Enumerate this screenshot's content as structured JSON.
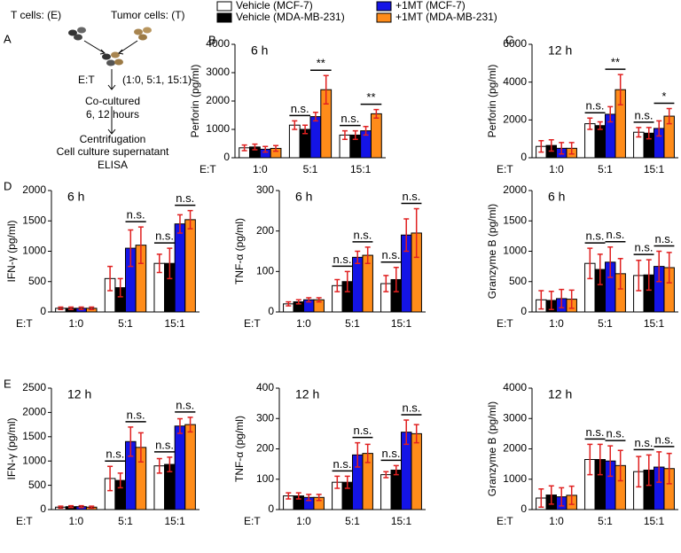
{
  "diagram": {
    "panel": "A",
    "effector": "T cells: (E)",
    "target": "Tumor cells: (T)",
    "ratio_label": "E:T",
    "ratios": "(1:0, 5:1, 15:1)",
    "steps": [
      "Co-cultured",
      "6, 12 hours",
      "Centrifugation",
      "Cell culture supernatant",
      "ELISA"
    ]
  },
  "chart_data": [
    {
      "type": "bar",
      "panel": "B",
      "title": "6 h",
      "ylabel": "Perforin (pg/ml)",
      "xlabel": "E:T",
      "categories": [
        "1:0",
        "5:1",
        "15:1"
      ],
      "series": [
        {
          "name": "Vehicle (MCF-7)",
          "color": "#ffffff",
          "values": [
            350,
            1150,
            800
          ],
          "errors": [
            100,
            150,
            150
          ]
        },
        {
          "name": "Vehicle (MDA-MB-231)",
          "color": "#000000",
          "values": [
            380,
            1000,
            800
          ],
          "errors": [
            100,
            150,
            150
          ]
        },
        {
          "name": "+1MT (MCF-7)",
          "color": "#1414e6",
          "values": [
            300,
            1450,
            950
          ],
          "errors": [
            100,
            150,
            150
          ]
        },
        {
          "name": "+1MT (MDA-MB-231)",
          "color": "#ff8c1a",
          "values": [
            330,
            2400,
            1550
          ],
          "errors": [
            100,
            500,
            150
          ]
        }
      ],
      "ylim": [
        0,
        4000
      ],
      "yticks": [
        0,
        1000,
        2000,
        3000,
        4000
      ],
      "annotations": [
        {
          "text": "n.s.",
          "category": "5:1",
          "series": [
            0,
            1
          ]
        },
        {
          "text": "**",
          "category": "5:1",
          "series": [
            2,
            3
          ]
        },
        {
          "text": "n.s.",
          "category": "15:1",
          "series": [
            0,
            1
          ]
        },
        {
          "text": "**",
          "category": "15:1",
          "series": [
            2,
            3
          ]
        }
      ]
    },
    {
      "type": "bar",
      "panel": "C",
      "title": "12 h",
      "ylabel": "Perforin (pg/ml)",
      "xlabel": "E:T",
      "categories": [
        "1:0",
        "5:1",
        "15:1"
      ],
      "series": [
        {
          "color": "#ffffff",
          "values": [
            600,
            1800,
            1350
          ],
          "errors": [
            300,
            300,
            250
          ]
        },
        {
          "color": "#000000",
          "values": [
            650,
            1700,
            1300
          ],
          "errors": [
            300,
            200,
            300
          ]
        },
        {
          "color": "#1414e6",
          "values": [
            500,
            2300,
            1550
          ],
          "errors": [
            300,
            400,
            400
          ]
        },
        {
          "color": "#ff8c1a",
          "values": [
            500,
            3600,
            2200
          ],
          "errors": [
            300,
            800,
            400
          ]
        }
      ],
      "ylim": [
        0,
        6000
      ],
      "yticks": [
        0,
        2000,
        4000,
        6000
      ],
      "annotations": [
        {
          "text": "n.s.",
          "category": "5:1",
          "series": [
            0,
            1
          ]
        },
        {
          "text": "**",
          "category": "5:1",
          "series": [
            2,
            3
          ]
        },
        {
          "text": "n.s.",
          "category": "15:1",
          "series": [
            0,
            1
          ]
        },
        {
          "text": "*",
          "category": "15:1",
          "series": [
            2,
            3
          ]
        }
      ]
    },
    {
      "type": "bar",
      "panel": "D",
      "title": "6 h",
      "ylabel": "IFN-γ (pg/ml)",
      "xlabel": "E:T",
      "categories": [
        "1:0",
        "5:1",
        "15:1"
      ],
      "series": [
        {
          "color": "#ffffff",
          "values": [
            60,
            550,
            800
          ],
          "errors": [
            20,
            200,
            150
          ]
        },
        {
          "color": "#000000",
          "values": [
            60,
            400,
            800
          ],
          "errors": [
            20,
            150,
            250
          ]
        },
        {
          "color": "#1414e6",
          "values": [
            60,
            1050,
            1450
          ],
          "errors": [
            20,
            300,
            150
          ]
        },
        {
          "color": "#ff8c1a",
          "values": [
            60,
            1100,
            1520
          ],
          "errors": [
            20,
            300,
            150
          ]
        }
      ],
      "ylim": [
        0,
        2000
      ],
      "yticks": [
        0,
        500,
        1000,
        1500,
        2000
      ],
      "annotations": [
        {
          "text": "n.s.",
          "category": "5:1",
          "series": [
            2,
            3
          ]
        },
        {
          "text": "n.s.",
          "category": "15:1",
          "series": [
            0,
            1
          ]
        },
        {
          "text": "n.s.",
          "category": "15:1",
          "series": [
            2,
            3
          ]
        }
      ]
    },
    {
      "type": "bar",
      "title": "6 h",
      "ylabel": "TNF-α (pg/ml)",
      "xlabel": "E:T",
      "categories": [
        "1:0",
        "5:1",
        "15:1"
      ],
      "series": [
        {
          "color": "#ffffff",
          "values": [
            20,
            65,
            70
          ],
          "errors": [
            5,
            15,
            20
          ]
        },
        {
          "color": "#000000",
          "values": [
            25,
            75,
            80
          ],
          "errors": [
            5,
            25,
            30
          ]
        },
        {
          "color": "#1414e6",
          "values": [
            30,
            135,
            190
          ],
          "errors": [
            5,
            15,
            40
          ]
        },
        {
          "color": "#ff8c1a",
          "values": [
            30,
            140,
            195
          ],
          "errors": [
            5,
            20,
            60
          ]
        }
      ],
      "ylim": [
        0,
        300
      ],
      "yticks": [
        0,
        100,
        200,
        300
      ],
      "annotations": [
        {
          "text": "n.s.",
          "category": "5:1",
          "series": [
            0,
            1
          ]
        },
        {
          "text": "n.s.",
          "category": "5:1",
          "series": [
            2,
            3
          ]
        },
        {
          "text": "n.s.",
          "category": "15:1",
          "series": [
            0,
            1
          ]
        },
        {
          "text": "n.s.",
          "category": "15:1",
          "series": [
            2,
            3
          ]
        }
      ]
    },
    {
      "type": "bar",
      "title": "6 h",
      "ylabel": "Granzyme B (pg/ml)",
      "xlabel": "E:T",
      "categories": [
        "1:0",
        "5:1",
        "15:1"
      ],
      "series": [
        {
          "color": "#ffffff",
          "values": [
            200,
            800,
            600
          ],
          "errors": [
            150,
            250,
            250
          ]
        },
        {
          "color": "#000000",
          "values": [
            190,
            700,
            610
          ],
          "errors": [
            150,
            250,
            250
          ]
        },
        {
          "color": "#1414e6",
          "values": [
            220,
            820,
            750
          ],
          "errors": [
            150,
            250,
            250
          ]
        },
        {
          "color": "#ff8c1a",
          "values": [
            210,
            630,
            730
          ],
          "errors": [
            150,
            250,
            250
          ]
        }
      ],
      "ylim": [
        0,
        2000
      ],
      "yticks": [
        0,
        500,
        1000,
        1500,
        2000
      ],
      "annotations": [
        {
          "text": "n.s.",
          "category": "5:1",
          "series": [
            0,
            1
          ]
        },
        {
          "text": "n.s.",
          "category": "5:1",
          "series": [
            2,
            3
          ]
        },
        {
          "text": "n.s.",
          "category": "15:1",
          "series": [
            0,
            1
          ]
        },
        {
          "text": "n.s.",
          "category": "15:1",
          "series": [
            2,
            3
          ]
        }
      ]
    },
    {
      "type": "bar",
      "panel": "E",
      "title": "12 h",
      "ylabel": "IFN-γ (pg/ml)",
      "xlabel": "E:T",
      "categories": [
        "1:0",
        "5:1",
        "15:1"
      ],
      "series": [
        {
          "color": "#ffffff",
          "values": [
            50,
            640,
            900
          ],
          "errors": [
            20,
            250,
            150
          ]
        },
        {
          "color": "#000000",
          "values": [
            60,
            600,
            930
          ],
          "errors": [
            20,
            150,
            150
          ]
        },
        {
          "color": "#1414e6",
          "values": [
            60,
            1400,
            1720
          ],
          "errors": [
            20,
            300,
            150
          ]
        },
        {
          "color": "#ff8c1a",
          "values": [
            50,
            1280,
            1750
          ],
          "errors": [
            20,
            300,
            150
          ]
        }
      ],
      "ylim": [
        0,
        2500
      ],
      "yticks": [
        0,
        500,
        1000,
        1500,
        2000,
        2500
      ],
      "annotations": [
        {
          "text": "n.s.",
          "category": "5:1",
          "series": [
            0,
            1
          ]
        },
        {
          "text": "n.s.",
          "category": "5:1",
          "series": [
            2,
            3
          ]
        },
        {
          "text": "n.s.",
          "category": "15:1",
          "series": [
            0,
            1
          ]
        },
        {
          "text": "n.s.",
          "category": "15:1",
          "series": [
            2,
            3
          ]
        }
      ]
    },
    {
      "type": "bar",
      "title": "12 h",
      "ylabel": "TNF-α (pg/ml)",
      "xlabel": "E:T",
      "categories": [
        "1:0",
        "5:1",
        "15:1"
      ],
      "series": [
        {
          "color": "#ffffff",
          "values": [
            45,
            90,
            115
          ],
          "errors": [
            10,
            20,
            10
          ]
        },
        {
          "color": "#000000",
          "values": [
            45,
            90,
            130
          ],
          "errors": [
            10,
            20,
            15
          ]
        },
        {
          "color": "#1414e6",
          "values": [
            40,
            180,
            255
          ],
          "errors": [
            10,
            40,
            40
          ]
        },
        {
          "color": "#ff8c1a",
          "values": [
            40,
            185,
            250
          ],
          "errors": [
            10,
            30,
            30
          ]
        }
      ],
      "ylim": [
        0,
        400
      ],
      "yticks": [
        0,
        100,
        200,
        300,
        400
      ],
      "annotations": [
        {
          "text": "n.s.",
          "category": "5:1",
          "series": [
            0,
            1
          ]
        },
        {
          "text": "n.s.",
          "category": "5:1",
          "series": [
            2,
            3
          ]
        },
        {
          "text": "n.s.",
          "category": "15:1",
          "series": [
            0,
            1
          ]
        },
        {
          "text": "n.s.",
          "category": "15:1",
          "series": [
            2,
            3
          ]
        }
      ]
    },
    {
      "type": "bar",
      "title": "12 h",
      "ylabel": "Granzyme B (pg/ml)",
      "xlabel": "E:T",
      "categories": [
        "1:0",
        "5:1",
        "15:1"
      ],
      "series": [
        {
          "color": "#ffffff",
          "values": [
            380,
            1650,
            1250
          ],
          "errors": [
            300,
            500,
            500
          ]
        },
        {
          "color": "#000000",
          "values": [
            480,
            1650,
            1300
          ],
          "errors": [
            300,
            500,
            500
          ]
        },
        {
          "color": "#1414e6",
          "values": [
            420,
            1600,
            1400
          ],
          "errors": [
            300,
            500,
            500
          ]
        },
        {
          "color": "#ff8c1a",
          "values": [
            470,
            1450,
            1350
          ],
          "errors": [
            300,
            500,
            500
          ]
        }
      ],
      "ylim": [
        0,
        4000
      ],
      "yticks": [
        0,
        1000,
        2000,
        3000,
        4000
      ],
      "annotations": [
        {
          "text": "n.s.",
          "category": "5:1",
          "series": [
            0,
            1
          ]
        },
        {
          "text": "n.s.",
          "category": "5:1",
          "series": [
            2,
            3
          ]
        },
        {
          "text": "n.s.",
          "category": "15:1",
          "series": [
            0,
            1
          ]
        },
        {
          "text": "n.s.",
          "category": "15:1",
          "series": [
            2,
            3
          ]
        }
      ]
    }
  ]
}
